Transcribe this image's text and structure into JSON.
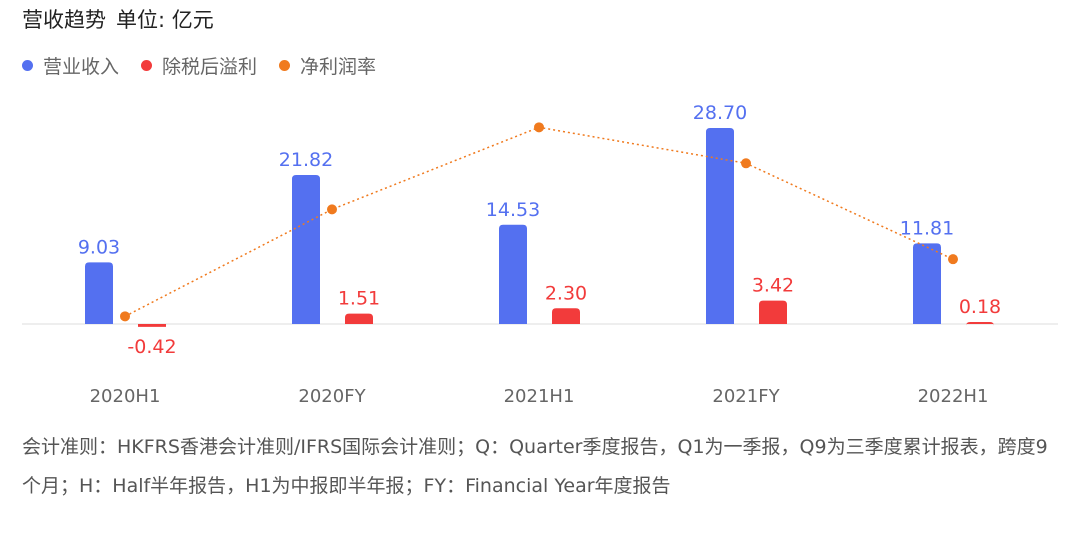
{
  "title": "营收趋势",
  "unit": "单位: 亿元",
  "colors": {
    "revenue": "#5470F0",
    "profit": "#F23B3B",
    "margin": "#F07A1E"
  },
  "chart_data": {
    "type": "bar",
    "categories": [
      "2020H1",
      "2020FY",
      "2021H1",
      "2021FY",
      "2022H1"
    ],
    "series": [
      {
        "name": "营业收入",
        "type": "bar",
        "values": [
          9.03,
          21.82,
          14.53,
          28.7,
          11.81
        ]
      },
      {
        "name": "除税后溢利",
        "type": "bar",
        "values": [
          -0.42,
          1.51,
          2.3,
          3.42,
          0.18
        ]
      },
      {
        "name": "净利润率",
        "type": "line",
        "values": [
          -4.7,
          6.9,
          15.8,
          11.9,
          1.5
        ],
        "unit": "%"
      }
    ],
    "legend_position": "top-left",
    "grid": false
  },
  "footnote": "会计准则：HKFRS香港会计准则/IFRS国际会计准则；Q：Quarter季度报告，Q1为一季报，Q9为三季度累计报表，跨度9个月；H：Half半年报告，H1为中报即半年报；FY：Financial Year年度报告"
}
